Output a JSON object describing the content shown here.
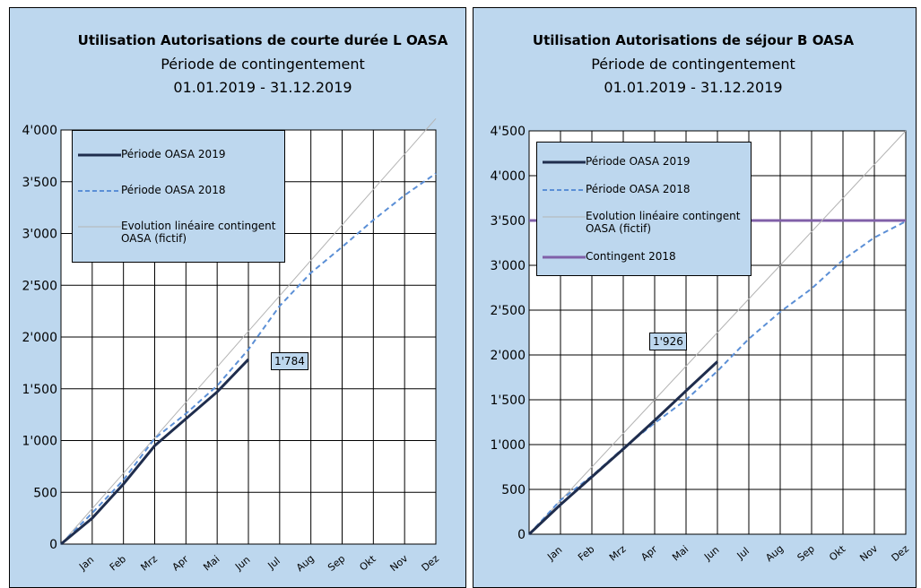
{
  "chart_data": [
    {
      "type": "line",
      "title": "Utilisation Autorisations de courte durée L OASA",
      "subtitle": "Période de contingentement",
      "period": "01.01.2019 -  31.12.2019",
      "categories": [
        null,
        "Jan",
        "Feb",
        "Mrz",
        "Apr",
        "Mai",
        "Jun",
        "Jul",
        "Aug",
        "Sep",
        "Okt",
        "Nov",
        "Dez"
      ],
      "ylim": [
        0,
        4000
      ],
      "yticks": [
        0,
        500,
        {
          "value": 1000,
          "label": "1'000"
        },
        {
          "value": 1500,
          "label": "1'500"
        },
        {
          "value": 2000,
          "label": "2'000"
        },
        {
          "value": 2500,
          "label": "2'500"
        },
        {
          "value": 3000,
          "label": "3'000"
        },
        {
          "value": 3500,
          "label": "3'500"
        },
        {
          "value": 4000,
          "label": "4'000"
        }
      ],
      "grid": true,
      "legend": "top-left",
      "series": [
        {
          "name": "Période OASA 2019",
          "color": "#1f2d4d",
          "width": 3,
          "dash": false,
          "values": [
            0,
            250,
            580,
            950,
            1210,
            1470,
            1784,
            null,
            null,
            null,
            null,
            null,
            null
          ],
          "value_labels": [
            null,
            null,
            null,
            null,
            null,
            null,
            "1'784",
            null,
            null,
            null,
            null,
            null,
            null
          ]
        },
        {
          "name": "Période OASA 2018",
          "color": "#5b8fd6",
          "width": 2,
          "dash": true,
          "values": [
            0,
            300,
            620,
            1020,
            1260,
            1530,
            1880,
            2300,
            2620,
            2870,
            3130,
            3370,
            3580
          ]
        },
        {
          "name": "Evolution linéaire contingent OASA (fictif)",
          "color": "#b4b4b4",
          "width": 1,
          "dash": false,
          "values": [
            0,
            342,
            685,
            1027,
            1370,
            1712,
            2055,
            2397,
            2740,
            3082,
            3425,
            3767,
            4110
          ]
        }
      ]
    },
    {
      "type": "line",
      "title": "Utilisation Autorisations de séjour B OASA",
      "subtitle": "Période de contingentement",
      "period": "01.01.2019 -  31.12.2019",
      "categories": [
        null,
        "Jan",
        "Feb",
        "Mrz",
        "Apr",
        "Mai",
        "Jun",
        "Jul",
        "Aug",
        "Sep",
        "Okt",
        "Nov",
        "Dez"
      ],
      "ylim": [
        0,
        4500
      ],
      "yticks": [
        0,
        500,
        {
          "value": 1000,
          "label": "1'000"
        },
        {
          "value": 1500,
          "label": "1'500"
        },
        {
          "value": 2000,
          "label": "2'000"
        },
        {
          "value": 2500,
          "label": "2'500"
        },
        {
          "value": 3000,
          "label": "3'000"
        },
        {
          "value": 3500,
          "label": "3'500"
        },
        {
          "value": 4000,
          "label": "4'000"
        },
        {
          "value": 4500,
          "label": "4'500"
        }
      ],
      "grid": true,
      "legend": "top-left",
      "series": [
        {
          "name": "Période OASA 2019",
          "color": "#1f2d4d",
          "width": 3,
          "dash": false,
          "values": [
            0,
            330,
            640,
            950,
            1270,
            1600,
            1926,
            null,
            null,
            null,
            null,
            null,
            null
          ],
          "value_labels": [
            null,
            null,
            null,
            null,
            null,
            null,
            "1'926",
            null,
            null,
            null,
            null,
            null,
            null
          ]
        },
        {
          "name": "Période OASA 2018",
          "color": "#5b8fd6",
          "width": 2,
          "dash": true,
          "values": [
            0,
            380,
            650,
            960,
            1240,
            1500,
            1820,
            2180,
            2480,
            2740,
            3060,
            3310,
            3490
          ]
        },
        {
          "name": "Evolution linéaire contingent OASA (fictif)",
          "color": "#b4b4b4",
          "width": 1,
          "dash": false,
          "values": [
            0,
            375,
            750,
            1125,
            1500,
            1875,
            2250,
            2625,
            3000,
            3375,
            3750,
            4125,
            4500
          ]
        },
        {
          "name": "Contingent 2018",
          "color": "#8060a8",
          "width": 3,
          "dash": false,
          "values": [
            3500,
            3500,
            3500,
            3500,
            3500,
            3500,
            3500,
            3500,
            3500,
            3500,
            3500,
            3500,
            3500
          ]
        }
      ]
    }
  ]
}
